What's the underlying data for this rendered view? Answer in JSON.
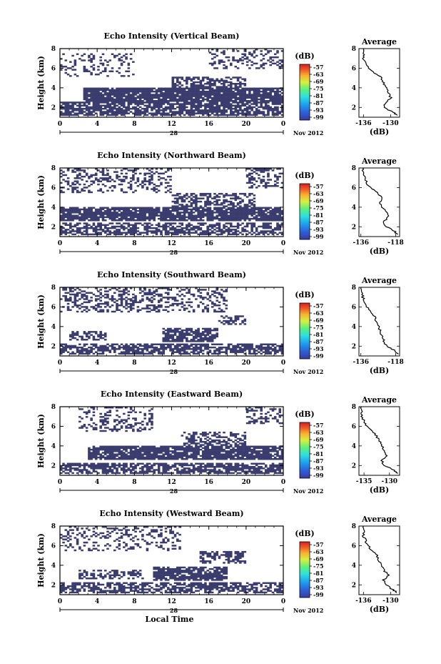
{
  "chart_data": [
    {
      "type": "heatmap",
      "title": "Echo Intensity (Vertical Beam)",
      "ylabel": "Height (km)",
      "x_ticks": [
        "0",
        "4",
        "8",
        "12",
        "16",
        "20",
        "0"
      ],
      "y_ticks": [
        "2",
        "4",
        "6",
        "8"
      ],
      "xlim": [
        0,
        24
      ],
      "ylim": [
        1,
        8
      ],
      "date_label": "28",
      "month_label": "Nov 2012",
      "colorbar": {
        "unit": "(dB)",
        "ticks": [
          "-57",
          "-63",
          "-69",
          "-75",
          "-81",
          "-87",
          "-93",
          "-99"
        ]
      },
      "echo_layers": [
        {
          "h0": 2.6,
          "h1": 4.0,
          "t0": 2.5,
          "t1": 24,
          "density": 0.9
        },
        {
          "h0": 1.2,
          "h1": 2.6,
          "t0": 0,
          "t1": 24,
          "density": 0.75
        },
        {
          "h0": 4.0,
          "h1": 5.2,
          "t0": 12,
          "t1": 20,
          "density": 0.6
        },
        {
          "h0": 5.2,
          "h1": 7.6,
          "t0": 0,
          "t1": 8,
          "density": 0.25
        },
        {
          "h0": 6.0,
          "h1": 8.0,
          "t0": 16,
          "t1": 24,
          "density": 0.3
        }
      ],
      "average": {
        "title": "Average",
        "xlabel": "(dB)",
        "x_ticks": [
          "-136",
          "-130"
        ],
        "xlim": [
          -137,
          -128
        ],
        "y_ticks": [
          "2",
          "4",
          "6",
          "8"
        ],
        "profile": [
          [
            1.2,
            -128.5
          ],
          [
            1.5,
            -129.5
          ],
          [
            2.0,
            -131.5
          ],
          [
            2.5,
            -131
          ],
          [
            3.0,
            -130
          ],
          [
            3.5,
            -130.5
          ],
          [
            4.0,
            -131
          ],
          [
            4.5,
            -131.5
          ],
          [
            5.0,
            -132
          ],
          [
            5.5,
            -133.5
          ],
          [
            6.0,
            -135
          ],
          [
            6.5,
            -135.5
          ],
          [
            7.0,
            -136
          ],
          [
            7.5,
            -136
          ],
          [
            8.0,
            -136
          ]
        ]
      }
    },
    {
      "type": "heatmap",
      "title": "Echo Intensity (Northward Beam)",
      "ylabel": "Height (km)",
      "x_ticks": [
        "0",
        "4",
        "8",
        "12",
        "16",
        "20",
        "0"
      ],
      "y_ticks": [
        "2",
        "4",
        "6",
        "8"
      ],
      "xlim": [
        0,
        24
      ],
      "ylim": [
        1,
        8
      ],
      "date_label": "28",
      "month_label": "Nov 2012",
      "colorbar": {
        "unit": "(dB)",
        "ticks": [
          "-57",
          "-63",
          "-69",
          "-75",
          "-81",
          "-87",
          "-93",
          "-99"
        ]
      },
      "echo_layers": [
        {
          "h0": 2.6,
          "h1": 4.0,
          "t0": 0,
          "t1": 24,
          "density": 0.85
        },
        {
          "h0": 1.2,
          "h1": 2.4,
          "t0": 0,
          "t1": 24,
          "density": 0.6
        },
        {
          "h0": 4.0,
          "h1": 5.5,
          "t0": 12,
          "t1": 21,
          "density": 0.55
        },
        {
          "h0": 5.5,
          "h1": 8.0,
          "t0": 0,
          "t1": 12,
          "density": 0.3
        },
        {
          "h0": 6.0,
          "h1": 8.0,
          "t0": 20,
          "t1": 24,
          "density": 0.35
        }
      ],
      "average": {
        "title": "Average",
        "xlabel": "(dB)",
        "x_ticks": [
          "-136",
          "-118"
        ],
        "xlim": [
          -137,
          -116
        ],
        "y_ticks": [
          "2",
          "4",
          "6",
          "8"
        ],
        "profile": [
          [
            1.2,
            -117
          ],
          [
            1.6,
            -119
          ],
          [
            2.0,
            -123
          ],
          [
            2.5,
            -124
          ],
          [
            3.0,
            -122
          ],
          [
            3.5,
            -123
          ],
          [
            4.0,
            -125
          ],
          [
            4.5,
            -126
          ],
          [
            5.0,
            -125
          ],
          [
            5.5,
            -128
          ],
          [
            6.0,
            -131
          ],
          [
            6.5,
            -133
          ],
          [
            7.0,
            -134
          ],
          [
            7.5,
            -135
          ],
          [
            8.0,
            -135
          ]
        ]
      }
    },
    {
      "type": "heatmap",
      "title": "Echo Intensity (Southward Beam)",
      "ylabel": "Height (km)",
      "x_ticks": [
        "0",
        "4",
        "8",
        "12",
        "16",
        "20",
        "0"
      ],
      "y_ticks": [
        "2",
        "4",
        "6",
        "8"
      ],
      "xlim": [
        0,
        24
      ],
      "ylim": [
        1,
        8
      ],
      "date_label": "28",
      "month_label": "Nov 2012",
      "colorbar": {
        "unit": "(dB)",
        "ticks": [
          "-57",
          "-63",
          "-69",
          "-75",
          "-81",
          "-87",
          "-93",
          "-99"
        ]
      },
      "echo_layers": [
        {
          "h0": 1.2,
          "h1": 2.2,
          "t0": 0,
          "t1": 24,
          "density": 0.7
        },
        {
          "h0": 2.5,
          "h1": 3.8,
          "t0": 11,
          "t1": 17,
          "density": 0.8
        },
        {
          "h0": 2.6,
          "h1": 3.5,
          "t0": 1,
          "t1": 5,
          "density": 0.5
        },
        {
          "h0": 4.2,
          "h1": 5.2,
          "t0": 17,
          "t1": 20,
          "density": 0.5
        },
        {
          "h0": 5.5,
          "h1": 8.0,
          "t0": 0,
          "t1": 18,
          "density": 0.35
        }
      ],
      "average": {
        "title": "Average",
        "xlabel": "(dB)",
        "x_ticks": [
          "-136",
          "-118"
        ],
        "xlim": [
          -137,
          -116
        ],
        "y_ticks": [
          "2",
          "4",
          "6",
          "8"
        ],
        "profile": [
          [
            1.2,
            -117
          ],
          [
            1.6,
            -119
          ],
          [
            2.0,
            -123
          ],
          [
            2.5,
            -124
          ],
          [
            3.0,
            -125
          ],
          [
            3.5,
            -126
          ],
          [
            4.0,
            -127
          ],
          [
            4.5,
            -128
          ],
          [
            5.0,
            -129
          ],
          [
            5.5,
            -131
          ],
          [
            6.0,
            -133
          ],
          [
            6.5,
            -134
          ],
          [
            7.0,
            -135
          ],
          [
            7.5,
            -135.5
          ],
          [
            8.0,
            -136
          ]
        ]
      }
    },
    {
      "type": "heatmap",
      "title": "Echo Intensity (Eastward Beam)",
      "ylabel": "Height (km)",
      "x_ticks": [
        "0",
        "4",
        "8",
        "12",
        "16",
        "20",
        "0"
      ],
      "y_ticks": [
        "2",
        "4",
        "6",
        "8"
      ],
      "xlim": [
        0,
        24
      ],
      "ylim": [
        1,
        8
      ],
      "date_label": "28",
      "month_label": "Nov 2012",
      "colorbar": {
        "unit": "(dB)",
        "ticks": [
          "-57",
          "-63",
          "-69",
          "-75",
          "-81",
          "-87",
          "-93",
          "-99"
        ]
      },
      "echo_layers": [
        {
          "h0": 1.2,
          "h1": 2.2,
          "t0": 0,
          "t1": 24,
          "density": 0.7
        },
        {
          "h0": 2.6,
          "h1": 4.0,
          "t0": 3,
          "t1": 24,
          "density": 0.85
        },
        {
          "h0": 4.0,
          "h1": 5.4,
          "t0": 13,
          "t1": 20,
          "density": 0.5
        },
        {
          "h0": 5.5,
          "h1": 8.0,
          "t0": 2,
          "t1": 10,
          "density": 0.3
        },
        {
          "h0": 6.2,
          "h1": 8.0,
          "t0": 20,
          "t1": 24,
          "density": 0.35
        }
      ],
      "average": {
        "title": "Average",
        "xlabel": "(dB)",
        "x_ticks": [
          "-135",
          "-130"
        ],
        "xlim": [
          -136,
          -128
        ],
        "y_ticks": [
          "2",
          "4",
          "6",
          "8"
        ],
        "profile": [
          [
            1.2,
            -128.5
          ],
          [
            1.5,
            -129
          ],
          [
            2.0,
            -131
          ],
          [
            2.5,
            -131.5
          ],
          [
            3.0,
            -130.5
          ],
          [
            3.5,
            -131
          ],
          [
            4.0,
            -131.5
          ],
          [
            4.5,
            -132
          ],
          [
            5.0,
            -132.5
          ],
          [
            5.5,
            -133.5
          ],
          [
            6.0,
            -134.5
          ],
          [
            6.5,
            -135
          ],
          [
            7.0,
            -135.5
          ],
          [
            7.5,
            -135.5
          ],
          [
            8.0,
            -135.5
          ]
        ]
      }
    },
    {
      "type": "heatmap",
      "title": "Echo Intensity (Westward Beam)",
      "ylabel": "Height (km)",
      "x_ticks": [
        "0",
        "4",
        "8",
        "12",
        "16",
        "20",
        "0"
      ],
      "y_ticks": [
        "2",
        "4",
        "6",
        "8"
      ],
      "xlim": [
        0,
        24
      ],
      "ylim": [
        1,
        8
      ],
      "date_label": "28",
      "month_label": "Nov 2012",
      "xlabel": "Local Time",
      "colorbar": {
        "unit": "(dB)",
        "ticks": [
          "-57",
          "-63",
          "-69",
          "-75",
          "-81",
          "-87",
          "-93",
          "-99"
        ]
      },
      "echo_layers": [
        {
          "h0": 1.2,
          "h1": 2.2,
          "t0": 0,
          "t1": 24,
          "density": 0.65
        },
        {
          "h0": 2.4,
          "h1": 3.8,
          "t0": 10,
          "t1": 18,
          "density": 0.8
        },
        {
          "h0": 2.6,
          "h1": 3.6,
          "t0": 2,
          "t1": 9,
          "density": 0.45
        },
        {
          "h0": 4.2,
          "h1": 5.4,
          "t0": 15,
          "t1": 20,
          "density": 0.5
        },
        {
          "h0": 5.5,
          "h1": 8.0,
          "t0": 0,
          "t1": 13,
          "density": 0.25
        }
      ],
      "average": {
        "title": "Average",
        "xlabel": "(dB)",
        "x_ticks": [
          "-136",
          "-130"
        ],
        "xlim": [
          -137,
          -128
        ],
        "y_ticks": [
          "2",
          "4",
          "6",
          "8"
        ],
        "profile": [
          [
            1.2,
            -128.5
          ],
          [
            1.5,
            -129.5
          ],
          [
            2.0,
            -131
          ],
          [
            2.5,
            -131.5
          ],
          [
            3.0,
            -130.5
          ],
          [
            3.5,
            -131.5
          ],
          [
            4.0,
            -132
          ],
          [
            4.5,
            -132.5
          ],
          [
            5.0,
            -133
          ],
          [
            5.5,
            -134
          ],
          [
            6.0,
            -135
          ],
          [
            6.5,
            -135.5
          ],
          [
            7.0,
            -136
          ],
          [
            7.5,
            -136
          ],
          [
            8.0,
            -136
          ]
        ]
      }
    }
  ],
  "colors": {
    "echo": "#3a3c6e",
    "colorbar": [
      "#3a3c9a",
      "#2f5cd6",
      "#1ea0f0",
      "#2ee0e0",
      "#5ef07a",
      "#d8f040",
      "#f8b030",
      "#f05a28",
      "#d42020"
    ]
  }
}
